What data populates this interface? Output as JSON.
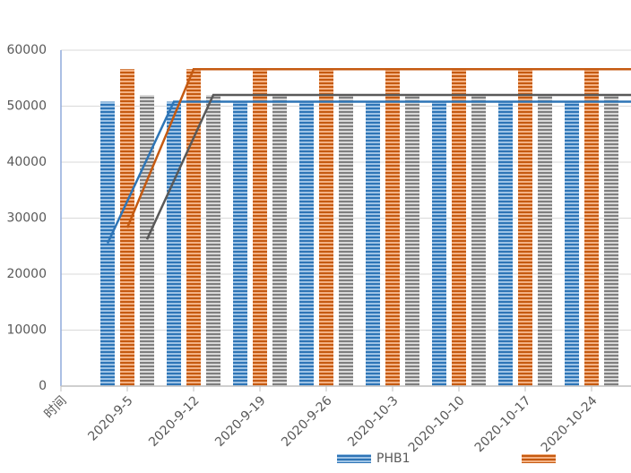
{
  "chart_data": {
    "type": "bar",
    "categories": [
      "时间",
      "2020-9-5",
      "2020-9-12",
      "2020-9-19",
      "2020-9-26",
      "2020-10-3",
      "2020-10-10",
      "2020-10-17",
      "2020-10-24"
    ],
    "series": [
      {
        "name": "PHB1",
        "color": "#2e75b6",
        "values": [
          null,
          50800,
          50800,
          50800,
          50800,
          50800,
          50800,
          50800,
          50800
        ]
      },
      {
        "color": "#c55a11",
        "values": [
          null,
          56600,
          56600,
          56600,
          56600,
          56600,
          56600,
          56600,
          56600
        ]
      },
      {
        "color": "#7f7f7f",
        "values": [
          null,
          52000,
          52000,
          52000,
          52000,
          52000,
          52000,
          52000,
          52000
        ]
      }
    ],
    "lines": [
      {
        "color": "#2e75b6",
        "values": [
          null,
          25500,
          50800,
          50800,
          50800,
          50800,
          50800,
          50800,
          50800
        ]
      },
      {
        "color": "#c55a11",
        "values": [
          null,
          28300,
          56600,
          56600,
          56600,
          56600,
          56600,
          56600,
          56600
        ]
      },
      {
        "color": "#595959",
        "values": [
          null,
          26200,
          52000,
          52000,
          52000,
          52000,
          52000,
          52000,
          52000
        ]
      }
    ],
    "ylim": [
      0,
      60000
    ],
    "yticks": [
      0,
      10000,
      20000,
      30000,
      40000,
      50000,
      60000
    ],
    "grid": true
  }
}
